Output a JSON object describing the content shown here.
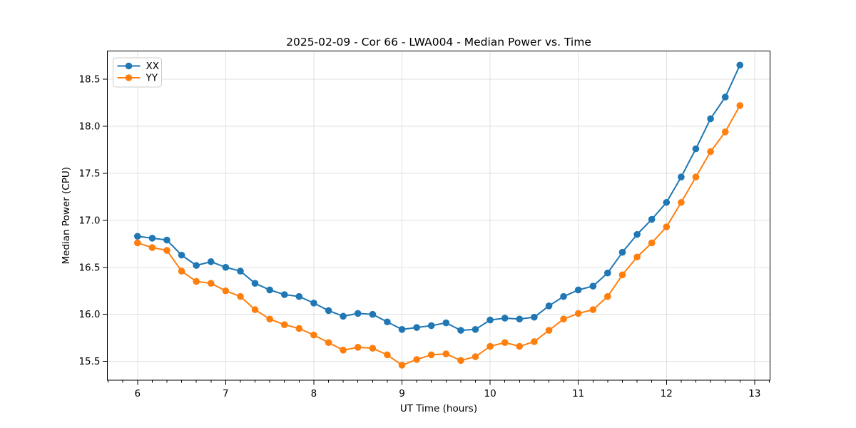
{
  "figure": {
    "background": "#ffffff"
  },
  "chart_data": {
    "type": "line",
    "title": "2025-02-09 - Cor 66 - LWA004 - Median Power vs. Time",
    "xlabel": "UT Time (hours)",
    "ylabel": "Median Power (CPU)",
    "x": [
      6.0,
      6.167,
      6.333,
      6.5,
      6.667,
      6.833,
      7.0,
      7.167,
      7.333,
      7.5,
      7.667,
      7.833,
      8.0,
      8.167,
      8.333,
      8.5,
      8.667,
      8.833,
      9.0,
      9.167,
      9.333,
      9.5,
      9.667,
      9.833,
      10.0,
      10.167,
      10.333,
      10.5,
      10.667,
      10.833,
      11.0,
      11.167,
      11.333,
      11.5,
      11.667,
      11.833,
      12.0,
      12.167,
      12.333,
      12.5,
      12.667,
      12.833
    ],
    "series": [
      {
        "name": "XX",
        "color": "#1f77b4",
        "marker": "circle",
        "values": [
          16.83,
          16.81,
          16.79,
          16.63,
          16.52,
          16.56,
          16.5,
          16.46,
          16.33,
          16.26,
          16.21,
          16.19,
          16.12,
          16.04,
          15.98,
          16.01,
          16.0,
          15.92,
          15.84,
          15.86,
          15.88,
          15.91,
          15.83,
          15.84,
          15.94,
          15.96,
          15.95,
          15.97,
          16.09,
          16.19,
          16.26,
          16.3,
          16.44,
          16.66,
          16.85,
          17.01,
          17.19,
          17.46,
          17.76,
          18.08,
          18.31,
          18.65
        ]
      },
      {
        "name": "YY",
        "color": "#ff7f0e",
        "marker": "circle",
        "values": [
          16.76,
          16.71,
          16.68,
          16.46,
          16.35,
          16.33,
          16.25,
          16.19,
          16.05,
          15.95,
          15.89,
          15.85,
          15.78,
          15.7,
          15.62,
          15.65,
          15.64,
          15.57,
          15.46,
          15.52,
          15.57,
          15.58,
          15.51,
          15.55,
          15.66,
          15.7,
          15.66,
          15.71,
          15.83,
          15.95,
          16.01,
          16.05,
          16.19,
          16.42,
          16.61,
          16.76,
          16.93,
          17.19,
          17.46,
          17.73,
          17.94,
          18.22
        ]
      }
    ],
    "xlim": [
      5.658,
      13.175
    ],
    "ylim": [
      15.3,
      18.8
    ],
    "xticks": [
      6,
      7,
      8,
      9,
      10,
      11,
      12,
      13
    ],
    "yticks": [
      15.5,
      16.0,
      16.5,
      17.0,
      17.5,
      18.0,
      18.5
    ],
    "minor_xtick_step": 0.16667,
    "grid": true,
    "grid_color": "#e0e0e0",
    "axis_color": "#000000",
    "text_color": "#000000",
    "legend": {
      "position": "upper left",
      "entries": [
        "XX",
        "YY"
      ]
    }
  }
}
